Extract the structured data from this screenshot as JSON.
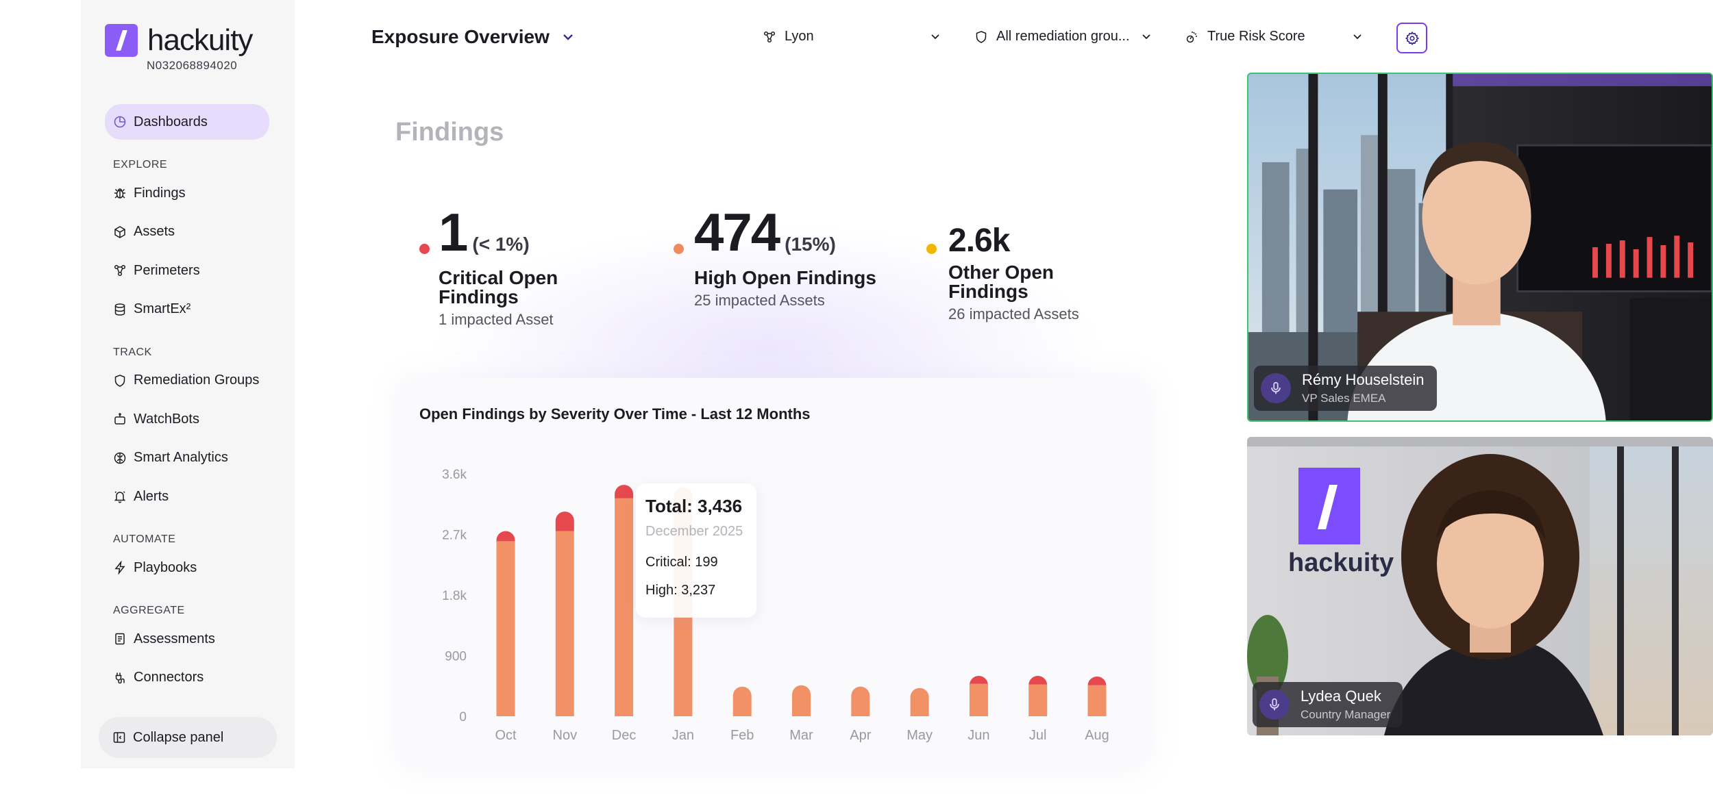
{
  "app": {
    "brand": "hackuity",
    "tenant_id": "N032068894020"
  },
  "sidebar": {
    "dashboards": "Dashboards",
    "sections": {
      "explore": "EXPLORE",
      "track": "TRACK",
      "automate": "AUTOMATE",
      "aggregate": "AGGREGATE"
    },
    "items": {
      "findings": "Findings",
      "assets": "Assets",
      "perimeters": "Perimeters",
      "smartex": "SmartEx²",
      "remediation_groups": "Remediation Groups",
      "watchbots": "WatchBots",
      "smart_analytics": "Smart Analytics",
      "alerts": "Alerts",
      "playbooks": "Playbooks",
      "assessments": "Assessments",
      "connectors": "Connectors"
    },
    "collapse_label": "Collapse panel"
  },
  "header": {
    "title": "Exposure Overview",
    "filters": {
      "perimeter": "Lyon",
      "remediation": "All remediation grou...",
      "score": "True Risk Score"
    }
  },
  "main": {
    "section_title": "Findings",
    "kpis": [
      {
        "value": "1",
        "pct": "(< 1%)",
        "label": "Critical Open Findings",
        "sub": "1 impacted Asset",
        "color": "#e5484d"
      },
      {
        "value": "474",
        "pct": "(15%)",
        "label": "High Open Findings",
        "sub": "25 impacted Assets",
        "color": "#f08a5d"
      },
      {
        "value": "2.6k",
        "pct": "",
        "label": "Other Open Findings",
        "sub": "26 impacted Assets",
        "color": "#f2b705"
      }
    ]
  },
  "chart_data": {
    "type": "bar",
    "title": "Open Findings by Severity Over Time - Last 12 Months",
    "categories": [
      "Oct",
      "Nov",
      "Dec",
      "Jan",
      "Feb",
      "Mar",
      "Apr",
      "May",
      "Jun",
      "Jul",
      "Aug"
    ],
    "series": [
      {
        "name": "High",
        "values": [
          2600,
          2750,
          3237,
          3400,
          440,
          460,
          440,
          420,
          480,
          470,
          460
        ]
      },
      {
        "name": "Critical",
        "values": [
          150,
          290,
          199,
          0,
          0,
          0,
          0,
          0,
          120,
          130,
          130
        ]
      }
    ],
    "yticks": [
      "0",
      "900",
      "1.8k",
      "2.7k",
      "3.6k"
    ],
    "ylim": [
      0,
      3600
    ],
    "colors": {
      "High": "#f29066",
      "Critical": "#e5484d"
    },
    "tooltip": {
      "total": "Total: 3,436",
      "date": "December 2025",
      "critical": "Critical: 199",
      "high": "High: 3,237"
    }
  },
  "participants": [
    {
      "name": "Rémy Houselstein",
      "role": "VP Sales EMEA"
    },
    {
      "name": "Lydea Quek",
      "role": "Country Manager"
    }
  ],
  "tile_logo_text": "hackuity",
  "colors": {
    "accent": "#8b5cf6",
    "active_nav": "#e6dcfb",
    "speaker_border": "#3ec46d"
  }
}
